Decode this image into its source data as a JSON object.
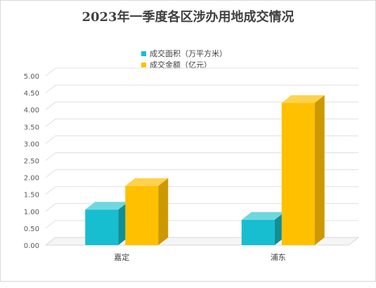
{
  "chart_data": {
    "type": "bar",
    "title": "2023年一季度各区涉办用地成交情况",
    "categories": [
      "嘉定",
      "浦东"
    ],
    "series": [
      {
        "name": "成交面积（万平方米）",
        "values": [
          1.05,
          0.75
        ],
        "color": "#17becf",
        "color_side": "#0f8f98",
        "color_top": "#6fd8de"
      },
      {
        "name": "成交金额（亿元）",
        "values": [
          1.75,
          4.2
        ],
        "color": "#ffc000",
        "color_side": "#cc9900",
        "color_top": "#ffd24d"
      }
    ],
    "ylim": [
      0,
      5
    ],
    "ytick_labels": [
      "0.00",
      "0.50",
      "1.00",
      "1.50",
      "2.00",
      "2.50",
      "3.00",
      "3.50",
      "4.00",
      "4.50",
      "5.00"
    ],
    "legend_position": "top-center",
    "grid": true,
    "style": "3d-column"
  }
}
